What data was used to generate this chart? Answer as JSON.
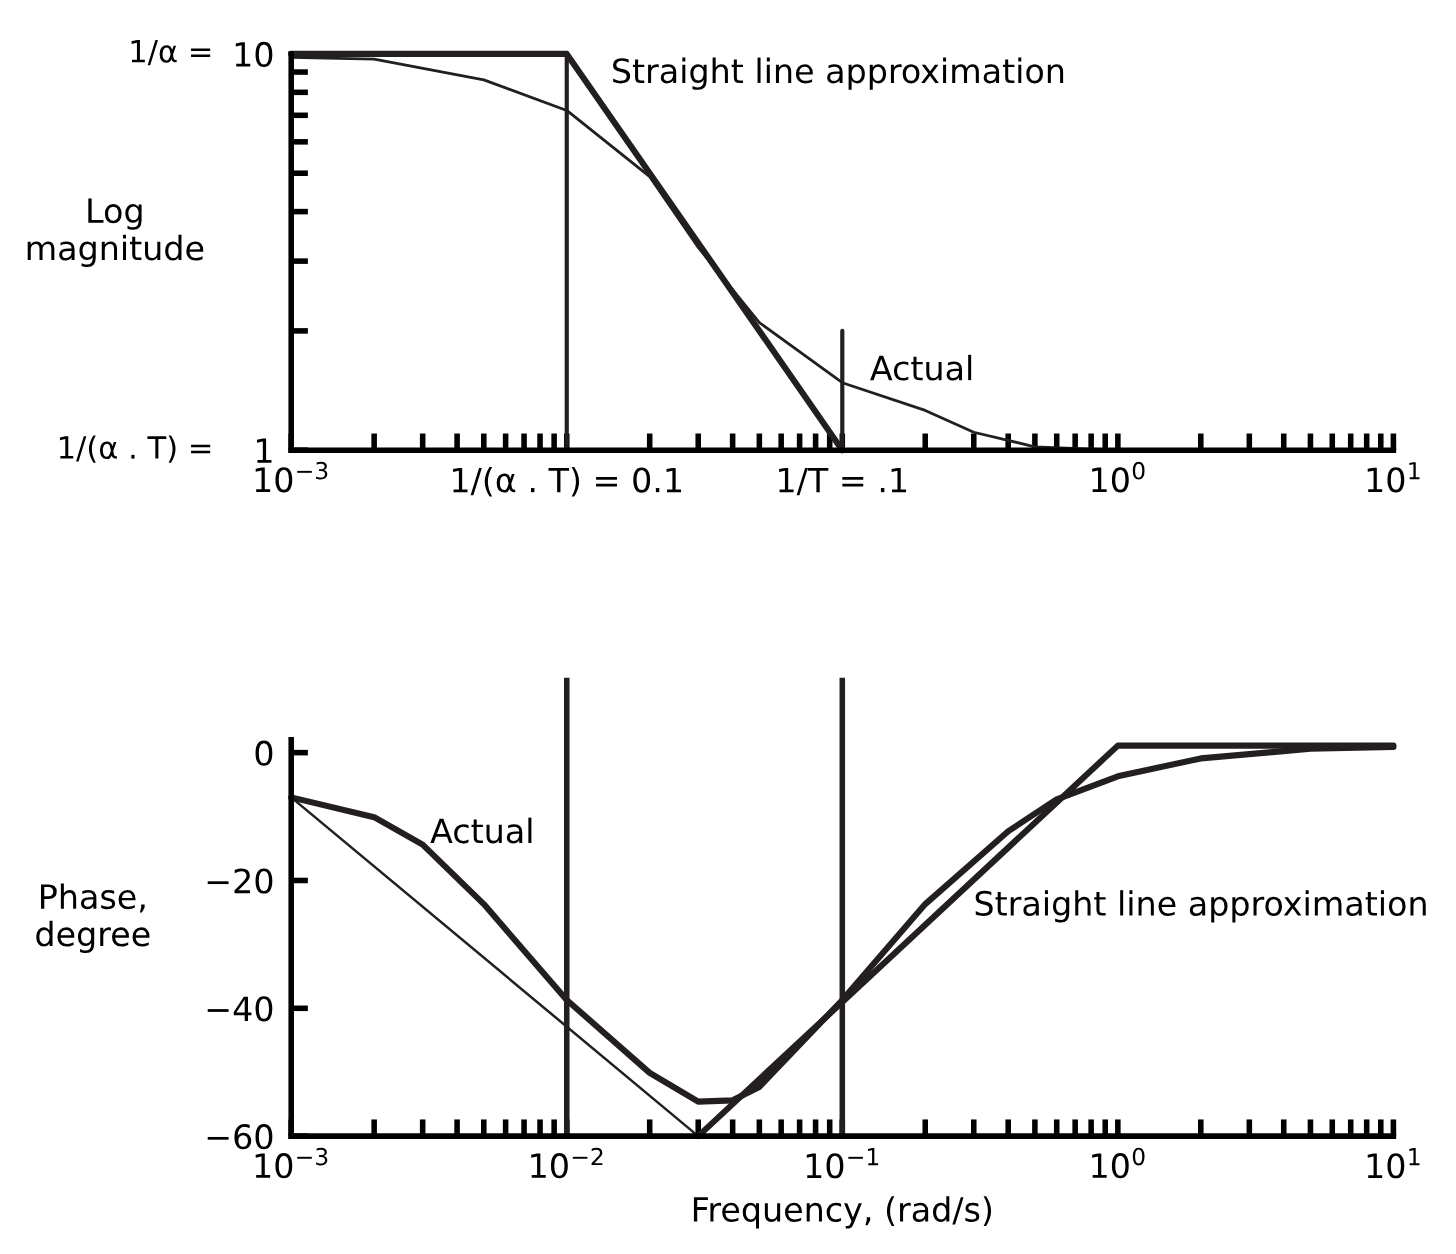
{
  "chart_data": [
    {
      "type": "line",
      "ylabel": "Log\nmagnitude",
      "log": "xy",
      "xlim": [
        0.001,
        10
      ],
      "ylim": [
        1,
        10
      ],
      "xticks": [
        {
          "value": 0.001,
          "label": "10$^{−3}$"
        },
        {
          "value": 0.01,
          "label": "1/(α . T) = 0.1"
        },
        {
          "value": 0.1,
          "label": "1/T = .1"
        },
        {
          "value": 1,
          "label": "10$^{0}$"
        },
        {
          "value": 10,
          "label": "10$^{1}$"
        }
      ],
      "yticks": [
        1,
        10
      ],
      "grid": false,
      "marker": "none",
      "line_style": "solid",
      "series": [
        {
          "color": "#231f20",
          "x": [
            0.001,
            0.01,
            0.1
          ],
          "values": [
            10,
            10,
            1
          ]
        },
        {
          "color": "#231f20",
          "x": [
            0.001,
            0.002,
            0.005,
            0.01,
            0.02,
            0.03,
            0.05,
            0.1,
            0.2,
            0.3,
            0.5,
            1,
            10
          ],
          "values": [
            9.8,
            9.7,
            8.6,
            7.2,
            4.9,
            3.25,
            2.1,
            1.48,
            1.26,
            1.11,
            1.02,
            1.0,
            1.0
          ]
        },
        {
          "color": "#231f20",
          "x": [
            0.1,
            0.1
          ],
          "values": [
            1,
            2
          ]
        }
      ],
      "ref_lines": [
        {
          "axis": "x",
          "value": 0.01,
          "color": "#231f20"
        }
      ],
      "annotations": [
        "1/(α . T) =",
        "1/α =",
        "Straight line approximation",
        "Actual"
      ]
    },
    {
      "type": "line",
      "xlabel": "Frequency, (rad/s)",
      "ylabel": "Phase,\ndegree",
      "log": "x",
      "xlim": [
        0.001,
        10
      ],
      "ylim": [
        -60,
        2
      ],
      "xticks": [
        {
          "value": 0.001,
          "label": "10$^{−3}$"
        },
        {
          "value": 0.01,
          "label": "10$^{−2}$"
        },
        {
          "value": 0.1,
          "label": "10$^{−1}$"
        },
        {
          "value": 1,
          "label": "10$^{0}$"
        },
        {
          "value": 10,
          "label": "10$^{1}$"
        }
      ],
      "yticks": [
        {
          "value": -60,
          "label": "−60"
        },
        {
          "value": -40,
          "label": "−40"
        },
        {
          "value": -20,
          "label": "−20"
        },
        0
      ],
      "grid": false,
      "marker": "none",
      "line_style": "solid",
      "series": [
        {
          "color": "#231f20",
          "x": [
            0.001,
            0.002,
            0.003,
            0.005,
            0.01,
            0.02,
            0.03,
            0.04,
            0.05,
            0.1,
            0.2,
            0.4,
            0.6,
            1,
            2,
            5,
            10
          ],
          "values": [
            -7,
            -10.1,
            -14.4,
            -23.7,
            -38.7,
            -50.1,
            -54.6,
            -54.4,
            -52.3,
            -38.7,
            -23.7,
            -12.3,
            -7.3,
            -3.7,
            -0.9,
            0.6,
            0.9
          ]
        },
        {
          "color": "#231f20",
          "x": [
            0.001,
            0.03
          ],
          "values": [
            -7,
            -60
          ]
        },
        {
          "color": "#231f20",
          "x": [
            0.03,
            1,
            10
          ],
          "values": [
            -60,
            1.1,
            1.1
          ]
        }
      ],
      "ref_lines": [
        {
          "axis": "x",
          "value": 0.01,
          "color": "#231f20"
        },
        {
          "axis": "x",
          "value": 0.1,
          "color": "#231f20"
        }
      ],
      "annotations": [
        "Actual",
        "Straight line approximation"
      ]
    }
  ]
}
